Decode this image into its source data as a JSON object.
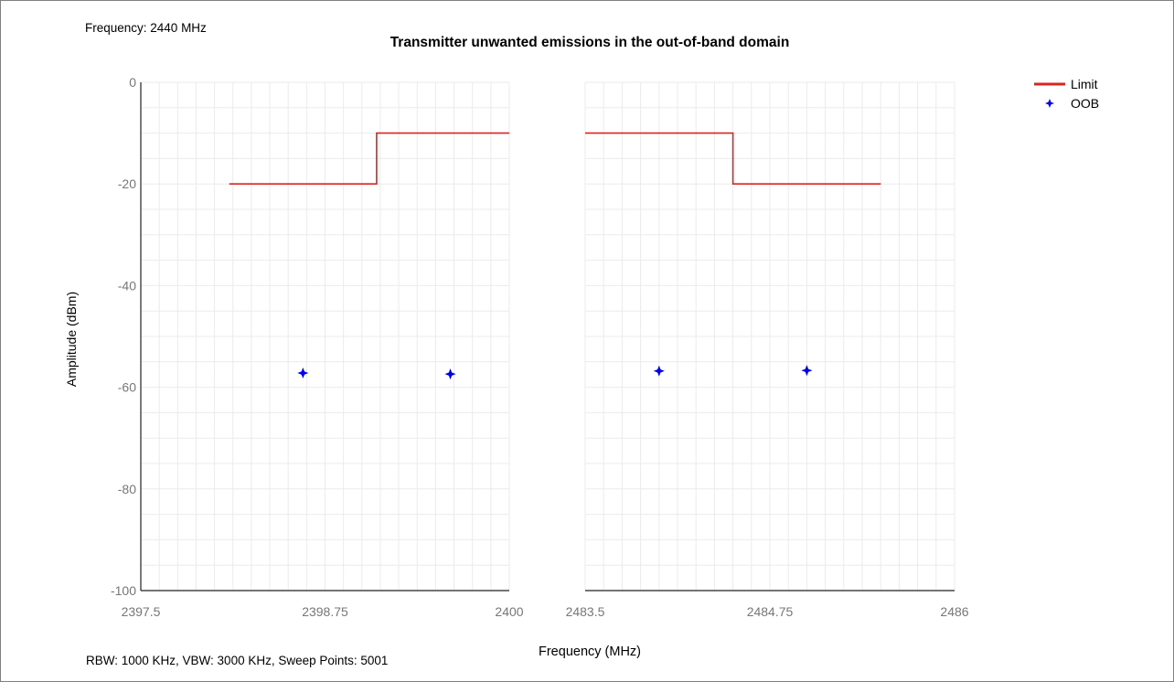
{
  "header": {
    "frequency_text": "Frequency: 2440 MHz"
  },
  "footer": {
    "settings_text": "RBW: 1000 KHz,  VBW: 3000 KHz,  Sweep Points: 5001"
  },
  "chart_data": {
    "type": "line",
    "title": "Transmitter unwanted emissions in the out-of-band domain",
    "xlabel": "Frequency (MHz)",
    "ylabel": "Amplitude (dBm)",
    "ylim": [
      -100,
      0
    ],
    "yticks": [
      0,
      -20,
      -40,
      -60,
      -80,
      -100
    ],
    "grid": true,
    "legend_position": "top-right",
    "legend": [
      "Limit",
      "OOB"
    ],
    "colors": {
      "limit": "#dd2222",
      "oob": "#0000ee",
      "grid": "#ebebeb",
      "axis": "#222222"
    },
    "panels": [
      {
        "xlim": [
          2397.5,
          2400
        ],
        "xticks": [
          "2397.5",
          "2398.75",
          "2400"
        ],
        "limit": {
          "x": [
            2398.1,
            2399.1,
            2399.1,
            2400
          ],
          "y": [
            -20,
            -20,
            -10,
            -10
          ]
        },
        "oob": {
          "x": [
            2398.6,
            2399.6
          ],
          "y": [
            -57.2,
            -57.4
          ]
        }
      },
      {
        "xlim": [
          2483.5,
          2486
        ],
        "xticks": [
          "2483.5",
          "2484.75",
          "2486"
        ],
        "limit": {
          "x": [
            2483.5,
            2484.5,
            2484.5,
            2485.5
          ],
          "y": [
            -10,
            -10,
            -20,
            -20
          ]
        },
        "oob": {
          "x": [
            2484.0,
            2485.0
          ],
          "y": [
            -56.8,
            -56.7
          ]
        }
      }
    ]
  }
}
